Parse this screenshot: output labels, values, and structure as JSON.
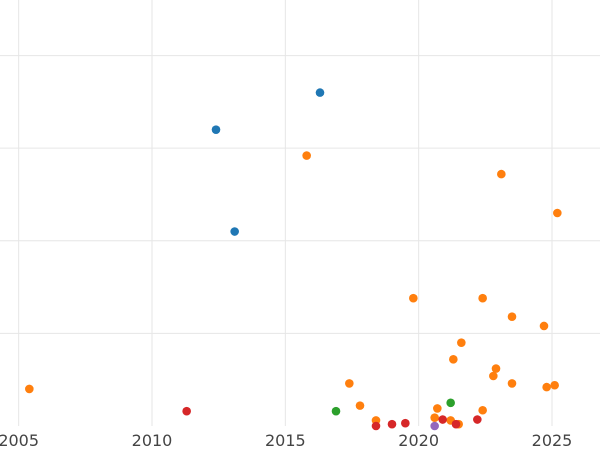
{
  "chart_data": {
    "type": "scatter",
    "title": "",
    "xlabel": "",
    "ylabel": "",
    "grid": true,
    "legend": "none",
    "xlim": [
      2004.3,
      2026.8
    ],
    "ylim": [
      0,
      23
    ],
    "x_ticks": [
      2005,
      2010,
      2015,
      2020,
      2025
    ],
    "x_tick_labels": [
      "2005",
      "2010",
      "2015",
      "2020",
      "2025"
    ],
    "y_ticks": [
      5,
      10,
      15,
      20
    ],
    "series": [
      {
        "name": "blue",
        "color": "#1f77b4",
        "points": [
          [
            2012.4,
            16.0
          ],
          [
            2016.3,
            18.0
          ],
          [
            2013.1,
            10.5
          ]
        ]
      },
      {
        "name": "orange",
        "color": "#ff7f0e",
        "points": [
          [
            2005.4,
            2.0
          ],
          [
            2015.8,
            14.6
          ],
          [
            2023.1,
            13.6
          ],
          [
            2025.2,
            11.5
          ],
          [
            2019.8,
            6.9
          ],
          [
            2022.4,
            6.9
          ],
          [
            2023.5,
            5.9
          ],
          [
            2024.7,
            5.4
          ],
          [
            2021.6,
            4.5
          ],
          [
            2021.3,
            3.6
          ],
          [
            2022.9,
            3.1
          ],
          [
            2022.8,
            2.7
          ],
          [
            2017.4,
            2.3
          ],
          [
            2023.5,
            2.3
          ],
          [
            2024.8,
            2.1
          ],
          [
            2025.1,
            2.2
          ],
          [
            2017.8,
            1.1
          ],
          [
            2020.7,
            0.95
          ],
          [
            2022.4,
            0.85
          ],
          [
            2018.4,
            0.3
          ],
          [
            2020.6,
            0.45
          ],
          [
            2021.2,
            0.3
          ],
          [
            2021.5,
            0.1
          ]
        ]
      },
      {
        "name": "green",
        "color": "#2ca02c",
        "points": [
          [
            2016.9,
            0.8
          ],
          [
            2021.2,
            1.25
          ]
        ]
      },
      {
        "name": "red",
        "color": "#d62728",
        "points": [
          [
            2011.3,
            0.8
          ],
          [
            2018.4,
            0.0
          ],
          [
            2019.0,
            0.1
          ],
          [
            2019.5,
            0.15
          ],
          [
            2020.9,
            0.35
          ],
          [
            2021.4,
            0.1
          ],
          [
            2022.2,
            0.35
          ]
        ]
      },
      {
        "name": "purple",
        "color": "#9467bd",
        "points": [
          [
            2020.6,
            0.0
          ]
        ]
      }
    ]
  }
}
